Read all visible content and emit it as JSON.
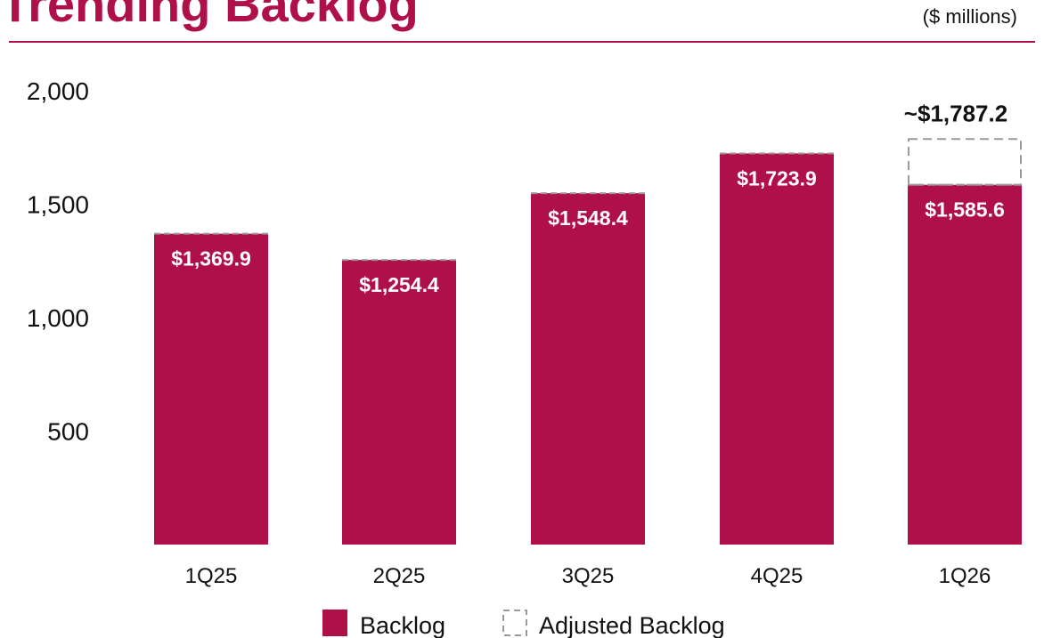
{
  "header": {
    "title": "Trending Backlog",
    "units": "($ millions)"
  },
  "colors": {
    "accent": "#b0104a",
    "adjusted_outline": "#9a9a9a"
  },
  "chart_data": {
    "type": "bar",
    "categories": [
      "1Q25",
      "2Q25",
      "3Q25",
      "4Q25",
      "1Q26"
    ],
    "series": [
      {
        "name": "Backlog",
        "values": [
          1369.9,
          1254.4,
          1548.4,
          1723.9,
          1585.6
        ]
      },
      {
        "name": "Adjusted Backlog",
        "values": [
          null,
          null,
          null,
          null,
          1787.2
        ]
      }
    ],
    "data_labels": [
      "$1,369.9",
      "$1,254.4",
      "$1,548.4",
      "$1,723.9",
      "$1,585.6"
    ],
    "adjusted_label": "~$1,787.2",
    "yticks": [
      500,
      1000,
      1500,
      2000
    ],
    "ytick_labels": [
      "500",
      "1,000",
      "1,500",
      "2,000"
    ],
    "ylim": [
      0,
      2000
    ],
    "grid": false,
    "legend": "bottom"
  }
}
